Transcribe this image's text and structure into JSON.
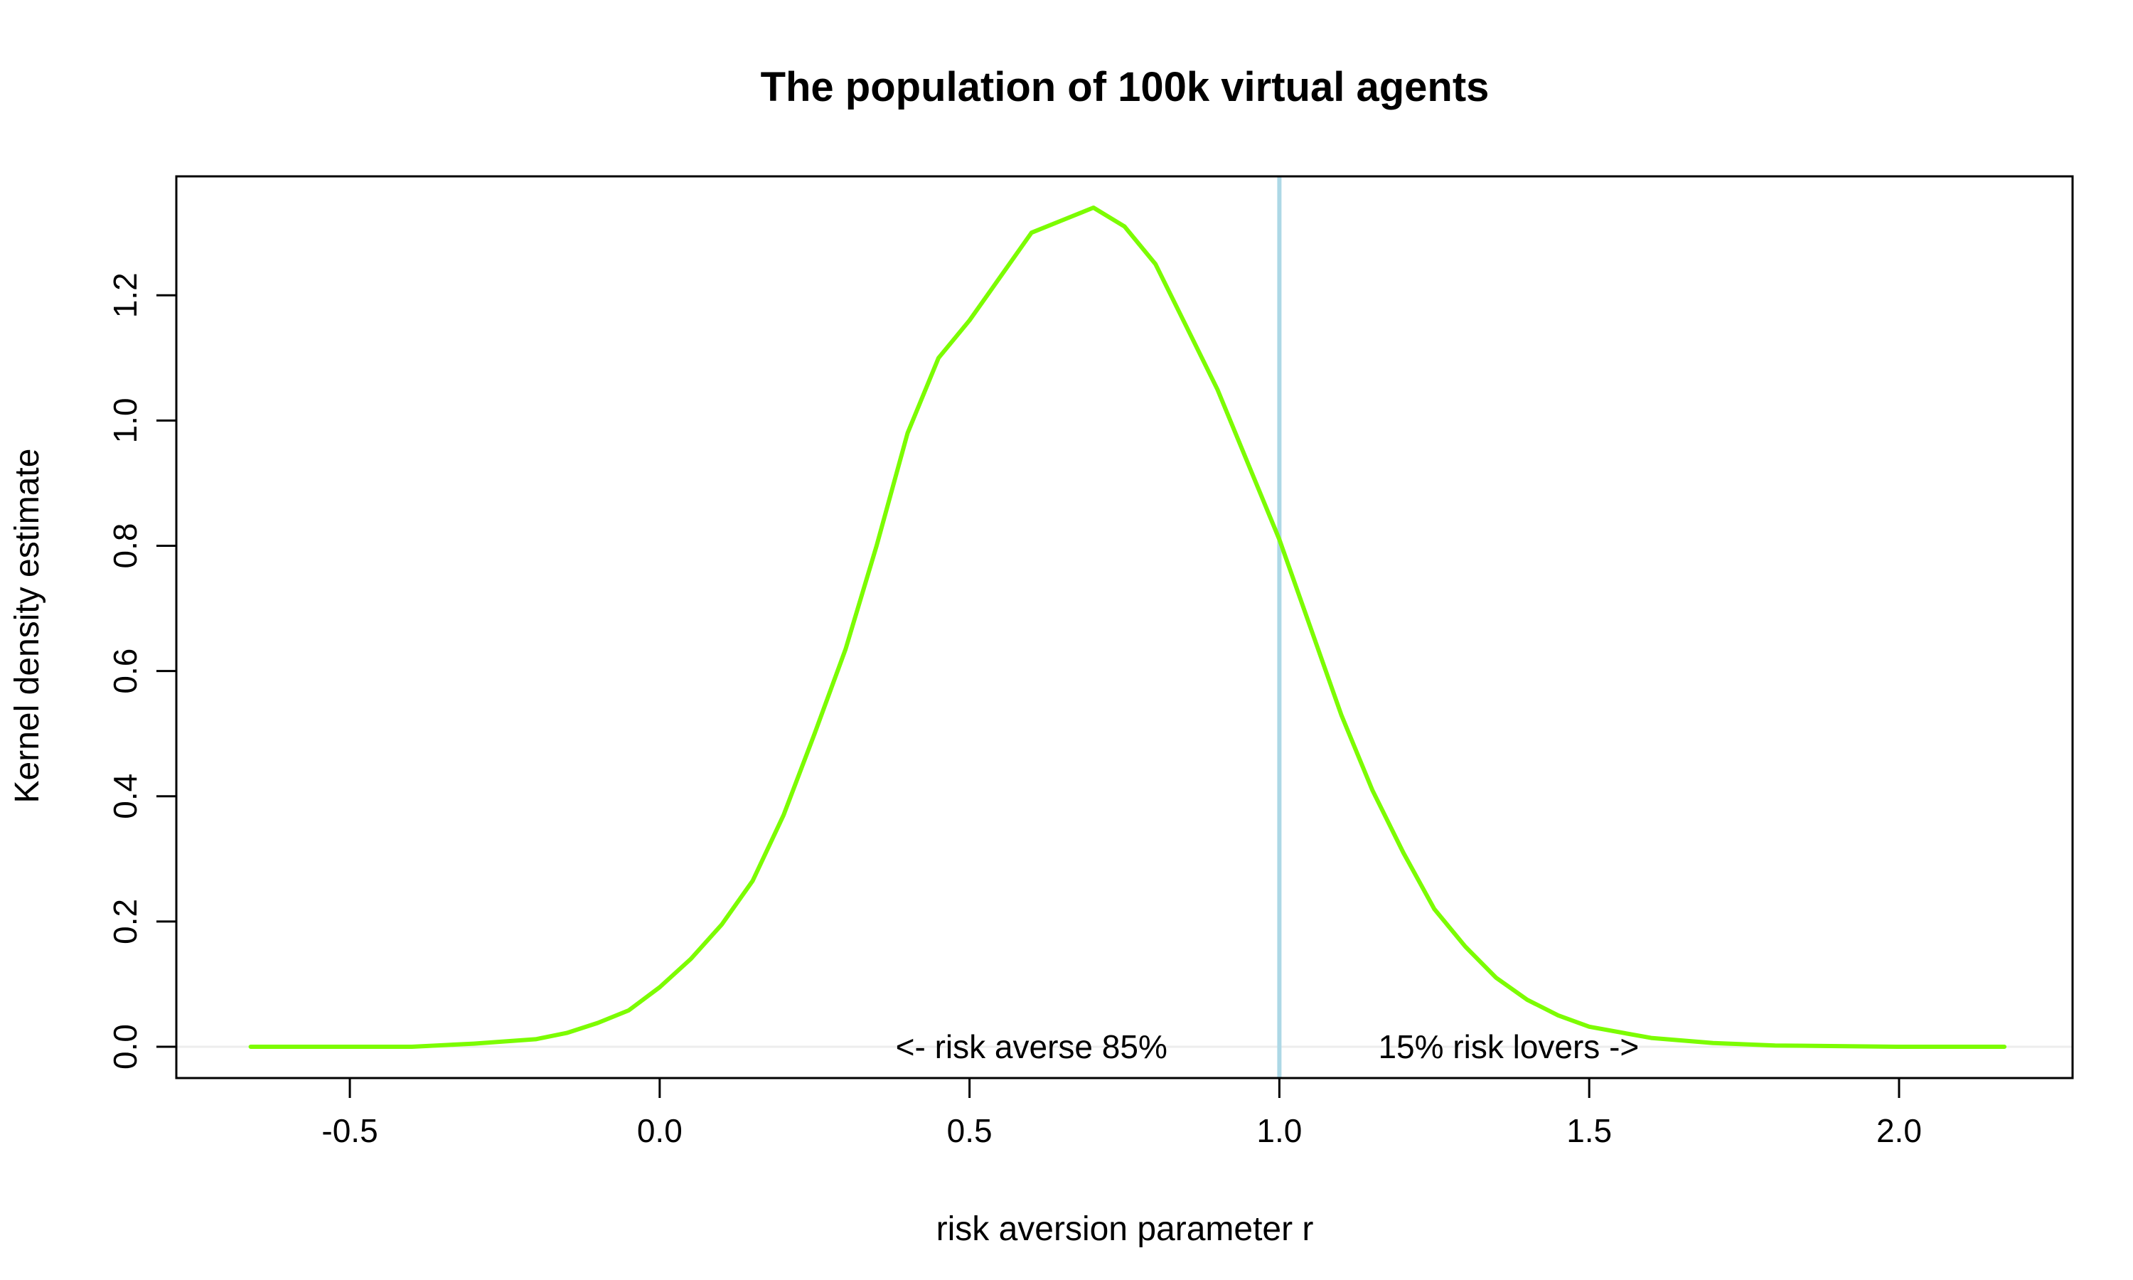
{
  "chart_data": {
    "type": "line",
    "title": "The population of 100k virtual agents",
    "xlabel": "risk aversion parameter r",
    "ylabel": "Kernel density estimate",
    "xlim": [
      -0.78,
      2.28
    ],
    "ylim": [
      -0.05,
      1.39
    ],
    "xticks": [
      -0.5,
      0.0,
      0.5,
      1.0,
      1.5,
      2.0
    ],
    "xtick_labels": [
      "-0.5",
      "0.0",
      "0.5",
      "1.0",
      "1.5",
      "2.0"
    ],
    "yticks": [
      0.0,
      0.2,
      0.4,
      0.6,
      0.8,
      1.0,
      1.2
    ],
    "ytick_labels": [
      "0.0",
      "0.2",
      "0.4",
      "0.6",
      "0.8",
      "1.0",
      "1.2"
    ],
    "grid": false,
    "series": [
      {
        "color": "#7cfc00",
        "x": [
          -0.66,
          -0.55,
          -0.4,
          -0.3,
          -0.2,
          -0.15,
          -0.1,
          -0.05,
          0.0,
          0.05,
          0.1,
          0.15,
          0.2,
          0.25,
          0.3,
          0.35,
          0.4,
          0.45,
          0.5,
          0.55,
          0.6,
          0.65,
          0.7,
          0.75,
          0.8,
          0.85,
          0.9,
          0.95,
          1.0,
          1.05,
          1.1,
          1.15,
          1.2,
          1.25,
          1.3,
          1.35,
          1.4,
          1.45,
          1.5,
          1.6,
          1.7,
          1.8,
          2.0,
          2.17
        ],
        "y": [
          0.0,
          0.0,
          0.0,
          0.005,
          0.012,
          0.022,
          0.038,
          0.058,
          0.095,
          0.14,
          0.195,
          0.265,
          0.37,
          0.5,
          0.635,
          0.8,
          0.98,
          1.1,
          1.16,
          1.23,
          1.3,
          1.32,
          1.34,
          1.31,
          1.25,
          1.15,
          1.05,
          0.93,
          0.81,
          0.67,
          0.53,
          0.41,
          0.31,
          0.22,
          0.16,
          0.11,
          0.075,
          0.05,
          0.032,
          0.014,
          0.006,
          0.002,
          0.0,
          0.0
        ]
      }
    ],
    "vline": {
      "x": 1.0,
      "color": "#add8e6"
    },
    "hline": {
      "y": 0.0,
      "color": "#ededed"
    },
    "annotations": {
      "left": {
        "text": "<- risk averse 85%",
        "x": 0.6,
        "y": 0.0
      },
      "right": {
        "text": "15% risk lovers ->",
        "x": 1.37,
        "y": 0.0
      }
    }
  }
}
